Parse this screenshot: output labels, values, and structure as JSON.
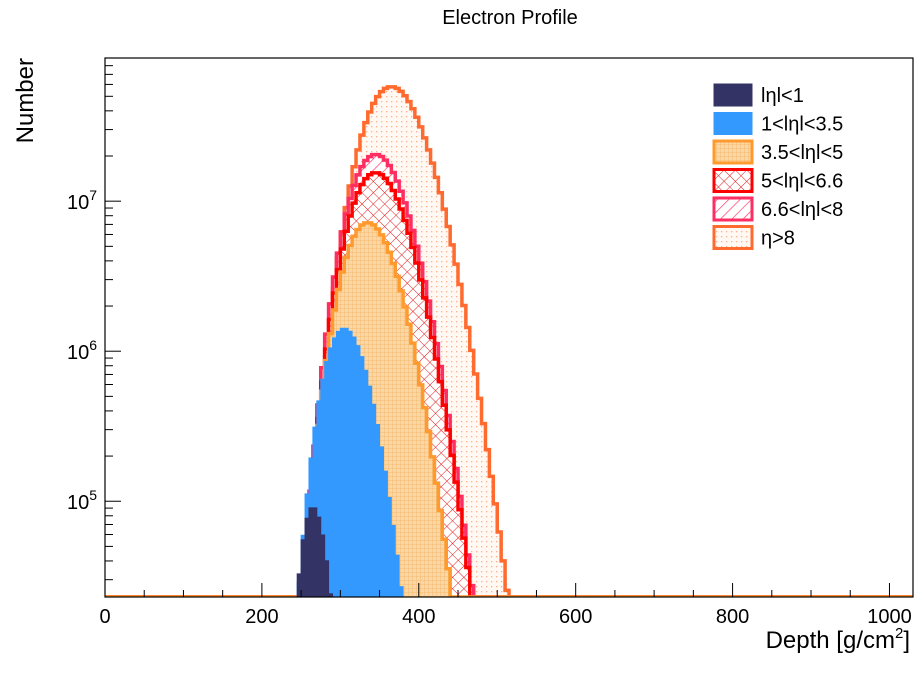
{
  "chart_data": {
    "type": "area",
    "title": "Electron Profile",
    "xlabel": "Depth [g/cm",
    "xlabel_sup": "2",
    "xlabel_tail": "]",
    "ylabel": "Number",
    "xlim": [
      0,
      1030
    ],
    "ylim": [
      23000,
      90000000
    ],
    "yscale": "log",
    "x_ticks": [
      0,
      200,
      400,
      600,
      800,
      1000
    ],
    "x_tick_labels": [
      "0",
      "200",
      "400",
      "600",
      "800",
      "1000"
    ],
    "y_ticks": [
      100000,
      1000000,
      10000000
    ],
    "y_tick_labels": [
      {
        "base": "10",
        "exp": "5"
      },
      {
        "base": "10",
        "exp": "6"
      },
      {
        "base": "10",
        "exp": "7"
      }
    ],
    "legend_position": "top-right",
    "series": [
      {
        "name": "η>8",
        "peak": 58000000,
        "xmax": 365,
        "start": 95,
        "color": "#ff6a2f",
        "fill": "dots"
      },
      {
        "name": "6.6<lηl<8",
        "peak": 20500000,
        "xmax": 345,
        "start": 100,
        "color": "#ff2e62",
        "fill": "hatch"
      },
      {
        "name": "5<lηl<6.6",
        "peak": 15500000,
        "xmax": 345,
        "start": 98,
        "color": "#ff0000",
        "fill": "cross"
      },
      {
        "name": "3.5<lηl<5",
        "peak": 7200000,
        "xmax": 335,
        "start": 103,
        "color": "#ff9a2e",
        "fill": "grid"
      },
      {
        "name": "1<lηl<3.5",
        "peak": 1430000,
        "xmax": 305,
        "start": 112,
        "color": "#3399ff",
        "fill": "solid"
      },
      {
        "name": "lηl<1",
        "peak": 92000,
        "xmax": 265,
        "start": 157,
        "color": "#333366",
        "fill": "solid"
      }
    ]
  }
}
